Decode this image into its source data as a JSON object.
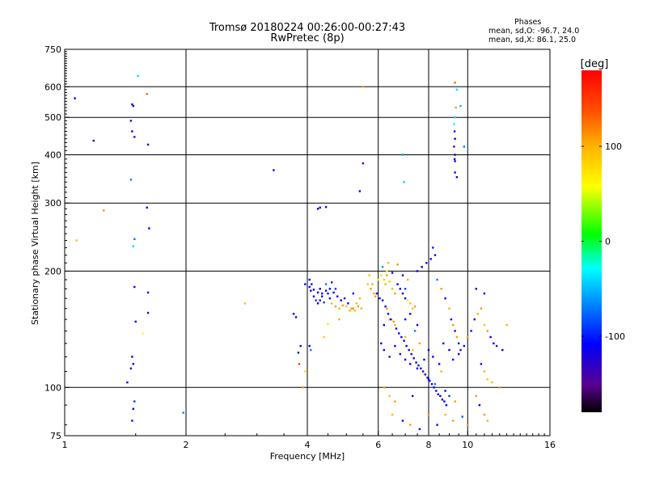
{
  "title_line1": "Tromsø 20180224 00:26:00-00:27:43",
  "title_line2": "RwPretec (8p)",
  "phases": {
    "heading": "Phases",
    "line_o": "mean, sd,O: -96.7, 24.0",
    "line_x": "mean, sd,X: 86.1, 25.0"
  },
  "colorbar": {
    "label": "[deg]",
    "range": [
      -180,
      180
    ],
    "ticks": [
      100,
      0,
      -100
    ]
  },
  "chart_data": {
    "type": "scatter",
    "xlabel": "Frequency [MHz]",
    "ylabel": "Stationary phase Virtual Height [km]",
    "x_scale": "log",
    "y_scale": "log",
    "xlim": [
      1,
      16
    ],
    "ylim": [
      75,
      750
    ],
    "xticks": [
      1,
      2,
      4,
      6,
      8,
      10,
      16
    ],
    "yticks": [
      75,
      100,
      200,
      300,
      400,
      500,
      600,
      750
    ],
    "grid": true,
    "gridlines_x": [
      2,
      4,
      6,
      8,
      10
    ],
    "gridlines_y": [
      100,
      200,
      300,
      400,
      500,
      600
    ],
    "color_by": "phase_deg",
    "points": [
      [
        1.06,
        560,
        -110
      ],
      [
        1.18,
        435,
        -110
      ],
      [
        1.25,
        287,
        110
      ],
      [
        1.07,
        240,
        90
      ],
      [
        1.52,
        640,
        -40
      ],
      [
        1.6,
        575,
        130
      ],
      [
        1.47,
        540,
        -110
      ],
      [
        1.48,
        535,
        -110
      ],
      [
        1.46,
        490,
        -130
      ],
      [
        1.47,
        460,
        -110
      ],
      [
        1.49,
        445,
        -130
      ],
      [
        1.61,
        425,
        -110
      ],
      [
        1.46,
        345,
        -70
      ],
      [
        1.6,
        292,
        -110
      ],
      [
        1.62,
        258,
        -110
      ],
      [
        1.49,
        242,
        -70
      ],
      [
        1.48,
        232,
        -40
      ],
      [
        1.49,
        182,
        -110
      ],
      [
        1.61,
        176,
        -110
      ],
      [
        1.61,
        156,
        -110
      ],
      [
        1.5,
        148,
        -110
      ],
      [
        1.56,
        138,
        60
      ],
      [
        1.47,
        120,
        -110
      ],
      [
        1.48,
        115,
        -110
      ],
      [
        1.46,
        112,
        -110
      ],
      [
        1.43,
        103,
        -110
      ],
      [
        1.49,
        92,
        -90
      ],
      [
        1.48,
        88,
        -120
      ],
      [
        1.47,
        82,
        -110
      ],
      [
        1.97,
        86,
        -70
      ],
      [
        2.8,
        165,
        90
      ],
      [
        3.3,
        365,
        -110
      ],
      [
        3.7,
        155,
        -110
      ],
      [
        3.75,
        152,
        -110
      ],
      [
        3.8,
        123,
        -110
      ],
      [
        3.85,
        128,
        -110
      ],
      [
        3.82,
        115,
        150
      ],
      [
        3.95,
        110,
        80
      ],
      [
        4.05,
        190,
        -110
      ],
      [
        4.1,
        185,
        -130
      ],
      [
        4.08,
        178,
        -110
      ],
      [
        4.15,
        172,
        -110
      ],
      [
        4.2,
        168,
        -90
      ],
      [
        4.25,
        165,
        -110
      ],
      [
        4.3,
        168,
        -130
      ],
      [
        4.35,
        172,
        -110
      ],
      [
        4.4,
        166,
        -90
      ],
      [
        4.05,
        128,
        -110
      ],
      [
        4.08,
        125,
        -70
      ],
      [
        4.3,
        180,
        -110
      ],
      [
        4.5,
        175,
        -110
      ],
      [
        4.55,
        170,
        -110
      ],
      [
        4.6,
        165,
        100
      ],
      [
        4.7,
        162,
        110
      ],
      [
        4.8,
        160,
        100
      ],
      [
        4.9,
        163,
        110
      ],
      [
        5.0,
        162,
        90
      ],
      [
        5.1,
        158,
        100
      ],
      [
        5.2,
        160,
        110
      ],
      [
        5.3,
        165,
        100
      ],
      [
        5.4,
        170,
        100
      ],
      [
        5.2,
        175,
        -110
      ],
      [
        4.45,
        185,
        -70
      ],
      [
        4.3,
        292,
        -110
      ],
      [
        4.45,
        293,
        -110
      ],
      [
        4.6,
        187,
        -100
      ],
      [
        4.7,
        180,
        -90
      ],
      [
        4.8,
        150,
        100
      ],
      [
        4.5,
        146,
        70
      ],
      [
        4.4,
        135,
        90
      ],
      [
        5.5,
        380,
        -110
      ],
      [
        5.4,
        322,
        -110
      ],
      [
        5.5,
        600,
        110
      ],
      [
        5.65,
        185,
        90
      ],
      [
        5.75,
        180,
        110
      ],
      [
        5.85,
        175,
        100
      ],
      [
        5.9,
        172,
        110
      ],
      [
        6.0,
        190,
        70
      ],
      [
        6.1,
        195,
        80
      ],
      [
        6.2,
        190,
        90
      ],
      [
        6.25,
        185,
        100
      ],
      [
        6.3,
        195,
        110
      ],
      [
        6.4,
        188,
        90
      ],
      [
        6.5,
        180,
        100
      ],
      [
        6.6,
        175,
        110
      ],
      [
        6.7,
        185,
        -110
      ],
      [
        6.8,
        180,
        -110
      ],
      [
        6.9,
        175,
        -130
      ],
      [
        7.0,
        170,
        -110
      ],
      [
        7.1,
        168,
        70
      ],
      [
        7.2,
        165,
        90
      ],
      [
        7.3,
        160,
        100
      ],
      [
        7.4,
        162,
        110
      ],
      [
        7.0,
        180,
        -90
      ],
      [
        6.95,
        340,
        -40
      ],
      [
        6.9,
        400,
        -60
      ],
      [
        7.0,
        150,
        -110
      ],
      [
        7.2,
        155,
        -110
      ],
      [
        7.4,
        140,
        -70
      ],
      [
        7.5,
        145,
        -110
      ],
      [
        6.3,
        160,
        110
      ],
      [
        6.2,
        145,
        -110
      ],
      [
        6.4,
        150,
        110
      ],
      [
        6.6,
        145,
        100
      ],
      [
        6.1,
        130,
        -110
      ],
      [
        6.2,
        125,
        -110
      ],
      [
        6.4,
        120,
        -130
      ],
      [
        6.6,
        128,
        -110
      ],
      [
        6.8,
        122,
        -110
      ],
      [
        7.0,
        118,
        -110
      ],
      [
        7.2,
        115,
        -110
      ],
      [
        7.5,
        112,
        -110
      ],
      [
        7.8,
        118,
        -110
      ],
      [
        8.0,
        125,
        -110
      ],
      [
        8.2,
        120,
        -110
      ],
      [
        8.5,
        115,
        -110
      ],
      [
        8.7,
        130,
        -110
      ],
      [
        9.0,
        125,
        -110
      ],
      [
        9.2,
        118,
        -110
      ],
      [
        9.5,
        122,
        -110
      ],
      [
        7.0,
        135,
        100
      ],
      [
        7.3,
        125,
        90
      ],
      [
        7.6,
        130,
        110
      ],
      [
        7.8,
        108,
        60
      ],
      [
        8.0,
        105,
        -110
      ],
      [
        8.3,
        102,
        -70
      ],
      [
        8.6,
        110,
        100
      ],
      [
        8.8,
        98,
        -110
      ],
      [
        9.0,
        95,
        -90
      ],
      [
        9.3,
        92,
        110
      ],
      [
        7.5,
        200,
        -110
      ],
      [
        7.7,
        205,
        -110
      ],
      [
        7.9,
        210,
        -130
      ],
      [
        8.1,
        215,
        -110
      ],
      [
        8.3,
        220,
        -130
      ],
      [
        8.2,
        230,
        -100
      ],
      [
        8.4,
        190,
        -70
      ],
      [
        8.6,
        180,
        110
      ],
      [
        8.8,
        170,
        -110
      ],
      [
        9.0,
        160,
        100
      ],
      [
        9.1,
        150,
        -110
      ],
      [
        9.2,
        145,
        110
      ],
      [
        9.3,
        140,
        -130
      ],
      [
        9.4,
        135,
        110
      ],
      [
        9.5,
        130,
        -110
      ],
      [
        9.6,
        125,
        -130
      ],
      [
        9.8,
        128,
        -110
      ],
      [
        10.0,
        135,
        110
      ],
      [
        10.2,
        140,
        -110
      ],
      [
        10.4,
        150,
        -110
      ],
      [
        10.6,
        155,
        100
      ],
      [
        10.8,
        160,
        110
      ],
      [
        11.0,
        145,
        90
      ],
      [
        11.2,
        140,
        110
      ],
      [
        11.4,
        135,
        -110
      ],
      [
        11.6,
        130,
        -110
      ],
      [
        11.8,
        128,
        -130
      ],
      [
        12.2,
        125,
        -110
      ],
      [
        12.5,
        145,
        100
      ],
      [
        10.5,
        180,
        -110
      ],
      [
        11.0,
        175,
        -110
      ],
      [
        10.8,
        115,
        -110
      ],
      [
        11.0,
        110,
        100
      ],
      [
        11.2,
        105,
        90
      ],
      [
        11.5,
        103,
        100
      ],
      [
        12.0,
        100,
        110
      ],
      [
        10.5,
        95,
        110
      ],
      [
        10.7,
        90,
        -110
      ],
      [
        11.0,
        85,
        110
      ],
      [
        11.2,
        82,
        100
      ],
      [
        9.3,
        615,
        130
      ],
      [
        9.4,
        590,
        -40
      ],
      [
        9.3,
        500,
        -40
      ],
      [
        9.25,
        480,
        -30
      ],
      [
        9.28,
        460,
        -110
      ],
      [
        9.3,
        440,
        -110
      ],
      [
        9.25,
        420,
        -130
      ],
      [
        9.3,
        400,
        -110
      ],
      [
        9.28,
        390,
        -110
      ],
      [
        9.3,
        385,
        -110
      ],
      [
        9.35,
        530,
        110
      ],
      [
        9.6,
        535,
        -50
      ],
      [
        9.3,
        360,
        -110
      ],
      [
        9.8,
        420,
        -70
      ],
      [
        9.4,
        350,
        -110
      ],
      [
        6.5,
        85,
        100
      ],
      [
        6.9,
        82,
        -110
      ],
      [
        7.2,
        80,
        110
      ],
      [
        7.6,
        78,
        -110
      ],
      [
        8.0,
        85,
        110
      ],
      [
        8.4,
        80,
        -110
      ],
      [
        8.8,
        85,
        100
      ],
      [
        9.2,
        82,
        110
      ],
      [
        9.7,
        84,
        -80
      ],
      [
        10.0,
        80,
        110
      ],
      [
        6.2,
        100,
        110
      ],
      [
        6.4,
        95,
        90
      ],
      [
        6.6,
        92,
        110
      ],
      [
        7.3,
        95,
        -110
      ],
      [
        6.3,
        200,
        60
      ],
      [
        6.15,
        205,
        -60
      ],
      [
        6.35,
        210,
        100
      ],
      [
        6.5,
        198,
        -110
      ],
      [
        6.7,
        208,
        110
      ],
      [
        6.9,
        195,
        -110
      ],
      [
        7.1,
        190,
        100
      ],
      [
        5.7,
        195,
        90
      ],
      [
        5.8,
        185,
        100
      ],
      [
        5.95,
        175,
        -110
      ],
      [
        6.05,
        170,
        -110
      ],
      [
        6.15,
        168,
        -110
      ],
      [
        6.25,
        162,
        -110
      ],
      [
        6.35,
        155,
        -110
      ],
      [
        6.45,
        150,
        -110
      ],
      [
        6.55,
        148,
        110
      ],
      [
        6.65,
        142,
        -110
      ],
      [
        6.75,
        138,
        -110
      ],
      [
        6.85,
        135,
        -110
      ],
      [
        6.95,
        132,
        -110
      ],
      [
        7.05,
        128,
        -110
      ],
      [
        7.15,
        125,
        -110
      ],
      [
        7.25,
        122,
        -110
      ],
      [
        7.35,
        119,
        -110
      ],
      [
        7.45,
        116,
        -110
      ],
      [
        7.55,
        114,
        -110
      ],
      [
        7.65,
        112,
        -110
      ],
      [
        7.75,
        110,
        -110
      ],
      [
        7.85,
        108,
        -110
      ],
      [
        7.95,
        106,
        -110
      ],
      [
        8.05,
        104,
        -110
      ],
      [
        8.15,
        102,
        -110
      ],
      [
        8.25,
        100,
        -110
      ],
      [
        8.35,
        98,
        -110
      ],
      [
        8.45,
        96,
        -110
      ],
      [
        8.55,
        95,
        -110
      ],
      [
        8.65,
        93,
        -110
      ],
      [
        8.75,
        92,
        -110
      ],
      [
        8.85,
        90,
        -110
      ],
      [
        3.9,
        100,
        110
      ],
      [
        4.25,
        290,
        -110
      ],
      [
        5.05,
        165,
        -110
      ],
      [
        5.15,
        160,
        110
      ],
      [
        5.25,
        158,
        100
      ],
      [
        5.35,
        162,
        110
      ],
      [
        5.45,
        160,
        100
      ],
      [
        4.95,
        170,
        -110
      ],
      [
        4.85,
        168,
        -110
      ],
      [
        4.75,
        172,
        -110
      ],
      [
        4.65,
        176,
        -110
      ],
      [
        4.55,
        180,
        -110
      ],
      [
        4.45,
        178,
        -110
      ],
      [
        4.35,
        175,
        -110
      ],
      [
        4.25,
        176,
        -110
      ],
      [
        4.15,
        179,
        -110
      ],
      [
        4.05,
        182,
        -110
      ],
      [
        3.95,
        185,
        -110
      ]
    ]
  }
}
